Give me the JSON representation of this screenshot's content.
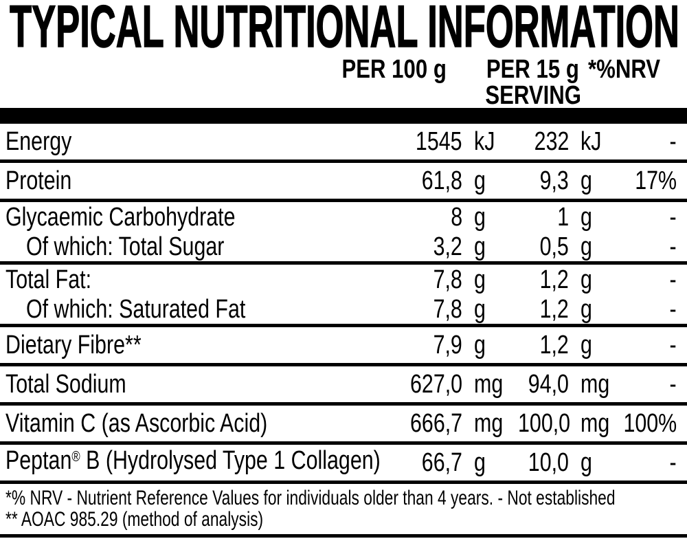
{
  "title": "TYPICAL NUTRITIONAL INFORMATION",
  "header": {
    "per100": "PER 100 g",
    "per15_line1": "PER 15 g",
    "per15_line2": "SERVING",
    "nrv": "*%NRV"
  },
  "table": {
    "rows": [
      {
        "label": "Energy",
        "per100_value": "1545",
        "per100_unit": "kJ",
        "per15_value": "232",
        "per15_unit": "kJ",
        "nrv": "-",
        "size": "tall",
        "indent": false,
        "rule_below": true
      },
      {
        "label": "Protein",
        "per100_value": "61,8",
        "per100_unit": "g",
        "per15_value": "9,3",
        "per15_unit": "g",
        "nrv": "17%",
        "size": "tall",
        "indent": false,
        "rule_below": true
      },
      {
        "label": "Glycaemic Carbohydrate",
        "per100_value": "8",
        "per100_unit": "g",
        "per15_value": "1",
        "per15_unit": "g",
        "nrv": "-",
        "size": "compact",
        "indent": false,
        "rule_below": false
      },
      {
        "label": "Of which: Total Sugar",
        "per100_value": "3,2",
        "per100_unit": "g",
        "per15_value": "0,5",
        "per15_unit": "g",
        "nrv": "-",
        "size": "compact",
        "indent": true,
        "rule_below": true
      },
      {
        "label": "Total Fat:",
        "per100_value": "7,8",
        "per100_unit": "g",
        "per15_value": "1,2",
        "per15_unit": "g",
        "nrv": "-",
        "size": "compact",
        "indent": false,
        "rule_below": false
      },
      {
        "label": "Of which: Saturated Fat",
        "per100_value": "7,8",
        "per100_unit": "g",
        "per15_value": "1,2",
        "per15_unit": "g",
        "nrv": "-",
        "size": "compact",
        "indent": true,
        "rule_below": true
      },
      {
        "label": "Dietary Fibre**",
        "per100_value": "7,9",
        "per100_unit": "g",
        "per15_value": "1,2",
        "per15_unit": "g",
        "nrv": "-",
        "size": "tall",
        "indent": false,
        "rule_below": true
      },
      {
        "label": "Total Sodium",
        "per100_value": "627,0",
        "per100_unit": "mg",
        "per15_value": "94,0",
        "per15_unit": "mg",
        "nrv": "-",
        "size": "tall",
        "indent": false,
        "rule_below": true
      },
      {
        "label": "Vitamin C (as Ascorbic Acid)",
        "per100_value": "666,7",
        "per100_unit": "mg",
        "per15_value": "100,0",
        "per15_unit": "mg",
        "nrv": "100%",
        "size": "tall",
        "indent": false,
        "rule_below": true
      },
      {
        "label": "Peptan",
        "label_sup": "®",
        "label_rest": " B (Hydrolysed Type 1 Collagen)",
        "per100_value": "66,7",
        "per100_unit": "g",
        "per15_value": "10,0",
        "per15_unit": "g",
        "nrv": "-",
        "size": "tall",
        "indent": false,
        "rule_below": true
      }
    ]
  },
  "footnotes": [
    "*% NRV - Nutrient Reference Values for individuals older than 4 years. - Not established",
    "** AOAC 985.29 (method of analysis)"
  ]
}
